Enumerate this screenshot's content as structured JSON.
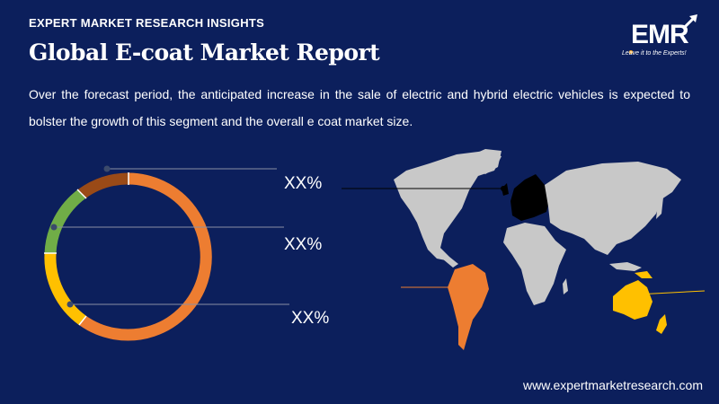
{
  "header": {
    "kicker": "EXPERT MARKET RESEARCH INSIGHTS",
    "title": "Global E-coat Market Report",
    "description": "Over the forecast period, the anticipated increase in the sale of electric and hybrid electric vehicles is expected to bolster the growth of this segment and the overall e coat market size."
  },
  "logo": {
    "text": "EMR",
    "tagline": "Leave it to the Experts!"
  },
  "donut": {
    "labels": [
      "XX%",
      "XX%",
      "XX%"
    ],
    "colors": {
      "brown": "#9a4a17",
      "orange": "#ed7d31",
      "green": "#70ad47",
      "yellow": "#ffc000"
    }
  },
  "map": {
    "colors": {
      "land": "#c8c8c8",
      "europe": "#000000",
      "south_america": "#ed7d31",
      "oceania": "#ffc000"
    }
  },
  "footer": {
    "url": "www.expertmarketresearch.com"
  }
}
